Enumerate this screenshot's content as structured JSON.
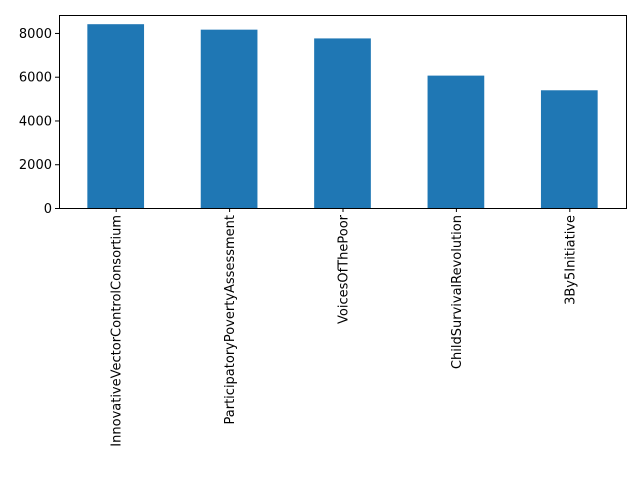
{
  "chart_data": {
    "type": "bar",
    "title": "",
    "xlabel": "",
    "ylabel": "",
    "categories": [
      "InnovativeVectorControlConsortium",
      "ParticipatoryPovertyAssessment",
      "VoicesOfThePoor",
      "ChildSurvivalRevolution",
      "3By5Initiative"
    ],
    "values": [
      8400,
      8150,
      7750,
      6050,
      5380
    ],
    "ylim": [
      0,
      8820
    ],
    "yticks": [
      0,
      2000,
      4000,
      6000,
      8000
    ],
    "ytick_labels": [
      "0",
      "2000",
      "4000",
      "6000",
      "8000"
    ],
    "bar_color": "#1f77b4",
    "grid": false,
    "legend": "none"
  }
}
